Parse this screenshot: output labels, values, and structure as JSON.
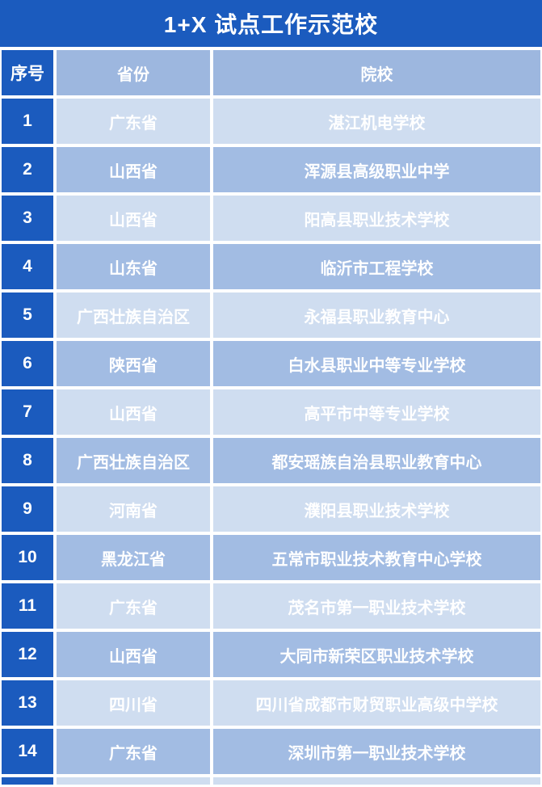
{
  "title": "1+X 试点工作示范校",
  "colors": {
    "dark_blue": "#1B5BBE",
    "header_blue": "#9DB7DF",
    "row_light": "#CFDDF0",
    "row_medium": "#A2BCE3",
    "text": "#FFFFFF",
    "gap": "#FFFFFF"
  },
  "table": {
    "columns": {
      "no": "序号",
      "province": "省份",
      "school": "院校"
    },
    "rows": [
      {
        "no": "1",
        "province": "广东省",
        "school": "湛江机电学校"
      },
      {
        "no": "2",
        "province": "山西省",
        "school": "浑源县高级职业中学"
      },
      {
        "no": "3",
        "province": "山西省",
        "school": "阳高县职业技术学校"
      },
      {
        "no": "4",
        "province": "山东省",
        "school": "临沂市工程学校"
      },
      {
        "no": "5",
        "province": "广西壮族自治区",
        "school": "永福县职业教育中心"
      },
      {
        "no": "6",
        "province": "陕西省",
        "school": "白水县职业中等专业学校"
      },
      {
        "no": "7",
        "province": "山西省",
        "school": "高平市中等专业学校"
      },
      {
        "no": "8",
        "province": "广西壮族自治区",
        "school": "都安瑶族自治县职业教育中心"
      },
      {
        "no": "9",
        "province": "河南省",
        "school": "濮阳县职业技术学校"
      },
      {
        "no": "10",
        "province": "黑龙江省",
        "school": "五常市职业技术教育中心学校"
      },
      {
        "no": "11",
        "province": "广东省",
        "school": "茂名市第一职业技术学校"
      },
      {
        "no": "12",
        "province": "山西省",
        "school": "大同市新荣区职业技术学校"
      },
      {
        "no": "13",
        "province": "四川省",
        "school": "四川省成都市财贸职业高级中学校"
      },
      {
        "no": "14",
        "province": "广东省",
        "school": "深圳市第一职业技术学校"
      }
    ]
  }
}
